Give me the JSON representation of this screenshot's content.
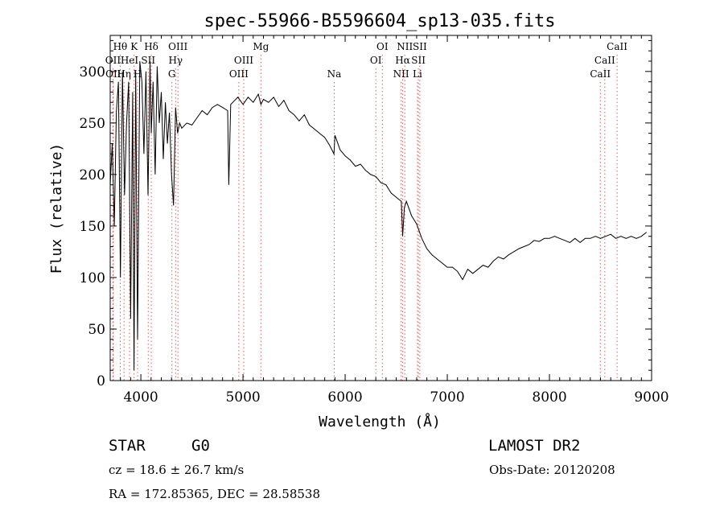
{
  "chart_data": {
    "type": "line",
    "title": "spec-55966-B5596604_sp13-035.fits",
    "xlabel": "Wavelength (Å)",
    "ylabel": "Flux (relative)",
    "xlim": [
      3700,
      9000
    ],
    "ylim": [
      0,
      335
    ],
    "xticks": [
      4000,
      5000,
      6000,
      7000,
      8000,
      9000
    ],
    "yticks": [
      0,
      50,
      100,
      150,
      200,
      250,
      300
    ],
    "grid": false,
    "series": [
      {
        "x": [
          3700,
          3720,
          3740,
          3760,
          3780,
          3800,
          3820,
          3840,
          3860,
          3880,
          3900,
          3920,
          3933,
          3950,
          3968,
          3990,
          4010,
          4030,
          4050,
          4070,
          4090,
          4102,
          4120,
          4140,
          4160,
          4180,
          4200,
          4220,
          4240,
          4260,
          4280,
          4300,
          4320,
          4340,
          4360,
          4380,
          4400,
          4450,
          4500,
          4550,
          4600,
          4650,
          4700,
          4750,
          4800,
          4850,
          4861,
          4880,
          4900,
          4950,
          5000,
          5050,
          5100,
          5150,
          5175,
          5200,
          5250,
          5300,
          5350,
          5400,
          5450,
          5500,
          5550,
          5600,
          5650,
          5700,
          5750,
          5800,
          5850,
          5890,
          5900,
          5950,
          6000,
          6050,
          6100,
          6150,
          6200,
          6250,
          6300,
          6350,
          6400,
          6450,
          6500,
          6550,
          6563,
          6580,
          6600,
          6650,
          6700,
          6750,
          6800,
          6850,
          6900,
          6950,
          7000,
          7050,
          7100,
          7150,
          7200,
          7250,
          7300,
          7350,
          7400,
          7450,
          7500,
          7550,
          7600,
          7650,
          7700,
          7750,
          7800,
          7850,
          7900,
          7950,
          8000,
          8050,
          8100,
          8150,
          8200,
          8250,
          8300,
          8350,
          8400,
          8450,
          8500,
          8550,
          8600,
          8650,
          8700,
          8750,
          8800,
          8850,
          8900,
          8950
        ],
        "y": [
          190,
          230,
          150,
          260,
          290,
          100,
          300,
          180,
          250,
          290,
          60,
          280,
          10,
          300,
          40,
          310,
          290,
          220,
          300,
          180,
          310,
          240,
          290,
          200,
          305,
          250,
          280,
          215,
          270,
          230,
          260,
          200,
          170,
          265,
          240,
          250,
          245,
          250,
          248,
          255,
          262,
          258,
          265,
          268,
          265,
          262,
          190,
          268,
          270,
          275,
          268,
          275,
          270,
          278,
          268,
          273,
          270,
          275,
          266,
          272,
          262,
          258,
          252,
          258,
          248,
          244,
          240,
          236,
          228,
          220,
          238,
          224,
          218,
          214,
          208,
          210,
          204,
          200,
          198,
          192,
          190,
          182,
          178,
          174,
          140,
          168,
          174,
          160,
          152,
          138,
          128,
          122,
          118,
          114,
          110,
          110,
          106,
          98,
          108,
          104,
          108,
          112,
          110,
          116,
          120,
          118,
          122,
          125,
          128,
          130,
          132,
          136,
          135,
          138,
          138,
          140,
          138,
          136,
          134,
          138,
          134,
          138,
          138,
          140,
          138,
          140,
          142,
          138,
          140,
          138,
          140,
          138,
          140,
          144
        ]
      }
    ],
    "emission_lines": [
      {
        "name": "Hθ",
        "x": 3798,
        "row": 0
      },
      {
        "name": "K",
        "x": 3934,
        "row": 0
      },
      {
        "name": "Hδ",
        "x": 4102,
        "row": 0
      },
      {
        "name": "OIII",
        "x": 4363,
        "row": 0
      },
      {
        "name": "Mg",
        "x": 5175,
        "row": 0
      },
      {
        "name": "OI",
        "x": 6364,
        "row": 0
      },
      {
        "name": "NII",
        "x": 6584,
        "row": 0
      },
      {
        "name": "SII",
        "x": 6731,
        "row": 0
      },
      {
        "name": "CaII",
        "x": 8662,
        "row": 0
      },
      {
        "name": "OII",
        "x": 3727,
        "row": 1
      },
      {
        "name": "HeI",
        "x": 3889,
        "row": 1
      },
      {
        "name": "SII",
        "x": 4072,
        "row": 1
      },
      {
        "name": "Hγ",
        "x": 4340,
        "row": 1
      },
      {
        "name": "OIII",
        "x": 5007,
        "row": 1
      },
      {
        "name": "OI",
        "x": 6300,
        "row": 1
      },
      {
        "name": "Hα",
        "x": 6563,
        "row": 1
      },
      {
        "name": "SII",
        "x": 6717,
        "row": 1
      },
      {
        "name": "CaII",
        "x": 8542,
        "row": 1
      },
      {
        "name": "OII",
        "x": 3730,
        "row": 2
      },
      {
        "name": "Hη",
        "x": 3835,
        "row": 2
      },
      {
        "name": "H",
        "x": 3968,
        "row": 2
      },
      {
        "name": "G",
        "x": 4304,
        "row": 2
      },
      {
        "name": "OIII",
        "x": 4959,
        "row": 2
      },
      {
        "name": "Na",
        "x": 5893,
        "row": 2
      },
      {
        "name": "NII",
        "x": 6548,
        "row": 2
      },
      {
        "name": "Li",
        "x": 6708,
        "row": 2
      },
      {
        "name": "CaII",
        "x": 8498,
        "row": 2
      }
    ],
    "line_color": "#000000",
    "marker_color": "#e05a5a"
  },
  "info": {
    "class_label": "STAR",
    "subclass": "G0",
    "survey": "LAMOST DR2",
    "cz": "cz = 18.6 ± 26.7 km/s",
    "obs_date": "Obs-Date: 20120208",
    "coords": "RA = 172.85365, DEC =  28.58538"
  }
}
